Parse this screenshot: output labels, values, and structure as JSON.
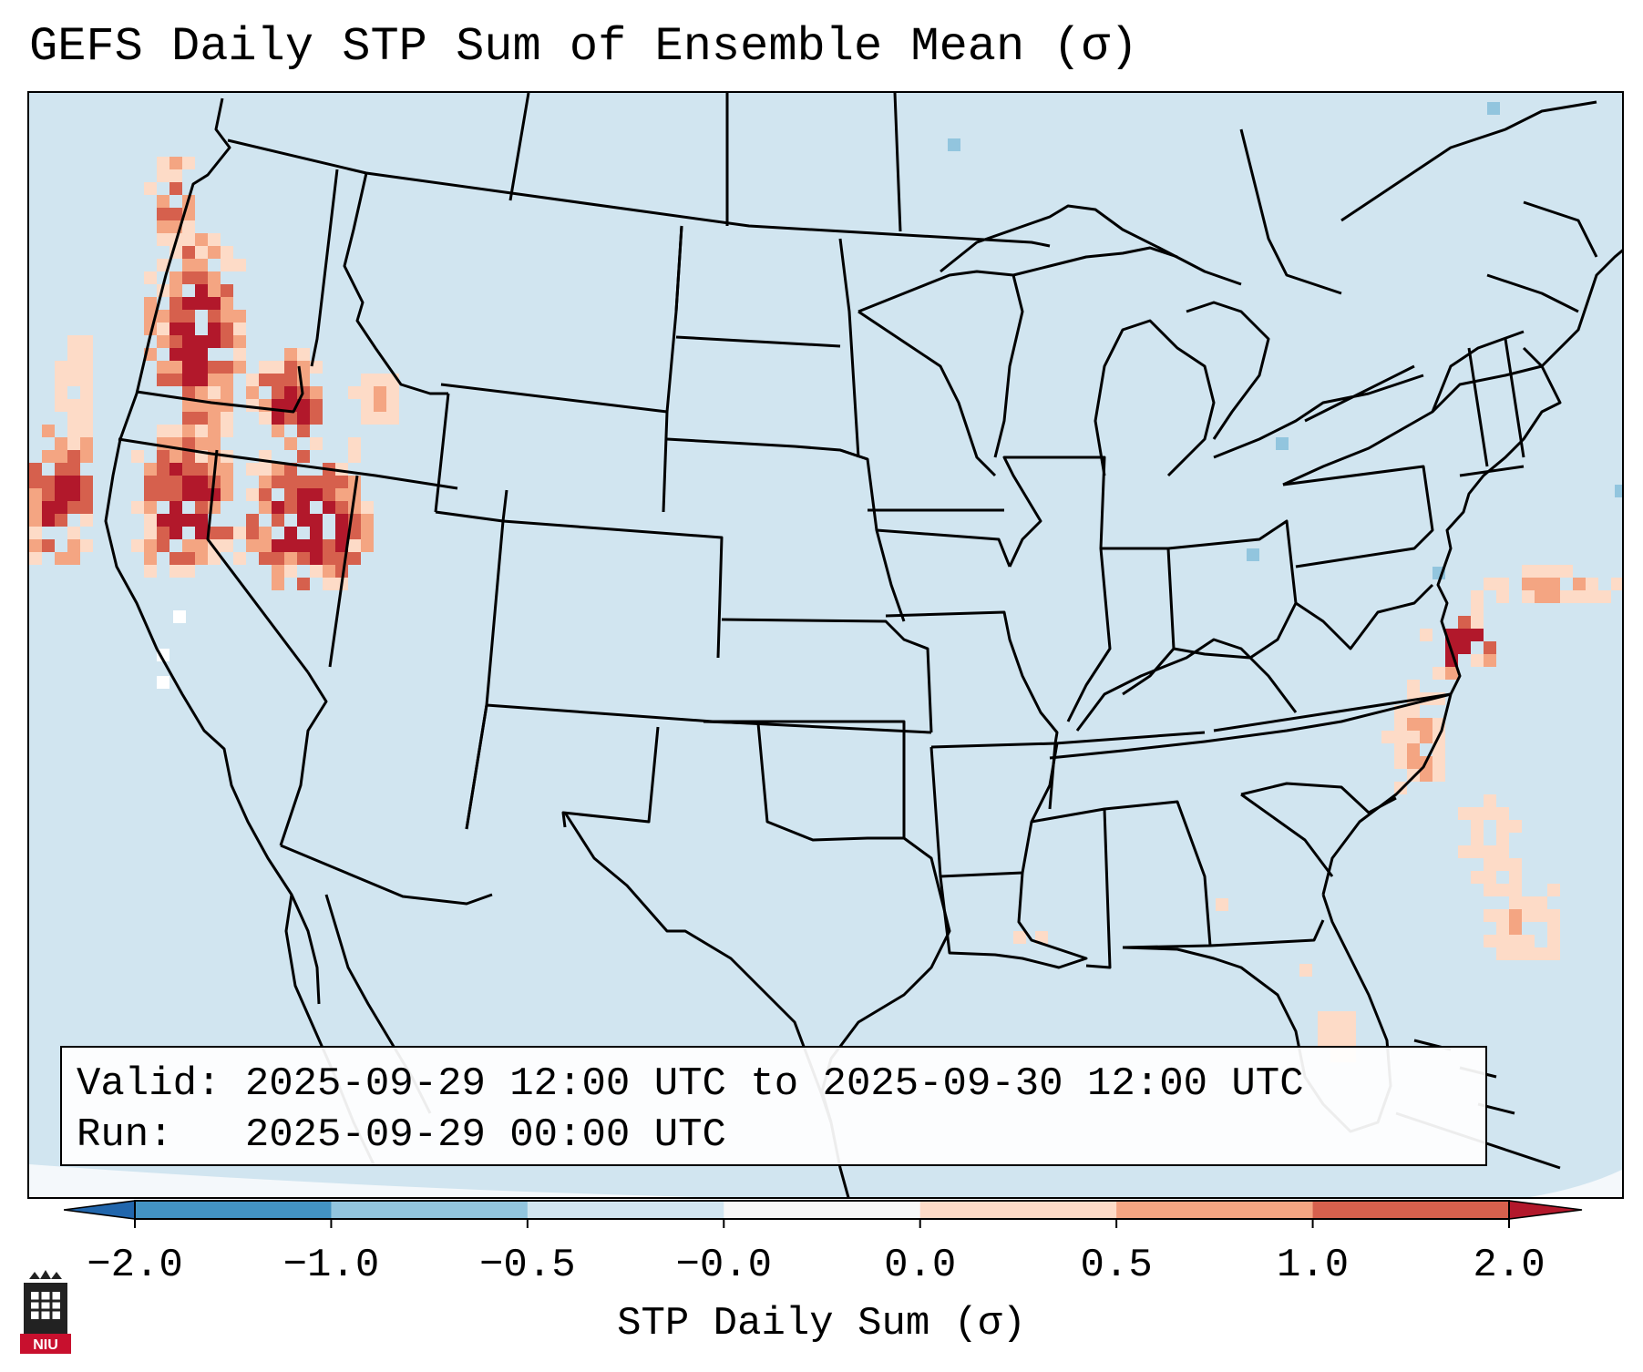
{
  "title": "GEFS Daily STP Sum of Ensemble Mean (σ)",
  "info": {
    "valid_line": "Valid: 2025-09-29 12:00 UTC to 2025-09-30 12:00 UTC",
    "run_line": "Run:   2025-09-29 00:00 UTC"
  },
  "colorbar": {
    "label": "STP Daily Sum (σ)",
    "ticks": [
      "−2.0",
      "−1.0",
      "−0.5",
      "−0.0",
      "0.0",
      "0.5",
      "1.0",
      "2.0"
    ],
    "segments": [
      {
        "range": "-2.0 to -1.0",
        "color": "#4393c3"
      },
      {
        "range": "-1.0 to -0.5",
        "color": "#92c5de"
      },
      {
        "range": "-0.5 to -0.0",
        "color": "#d1e5f0"
      },
      {
        "range": "-0.0 to 0.0",
        "color": "#f7f7f7"
      },
      {
        "range": "0.0 to 0.5",
        "color": "#fddbc7"
      },
      {
        "range": "0.5 to 1.0",
        "color": "#f4a582"
      },
      {
        "range": "1.0 to 2.0",
        "color": "#d6604d"
      }
    ],
    "under_color": "#2166ac",
    "over_color": "#b2182b"
  },
  "logo_text": "NIU",
  "map_background": "#d1e5f0"
}
